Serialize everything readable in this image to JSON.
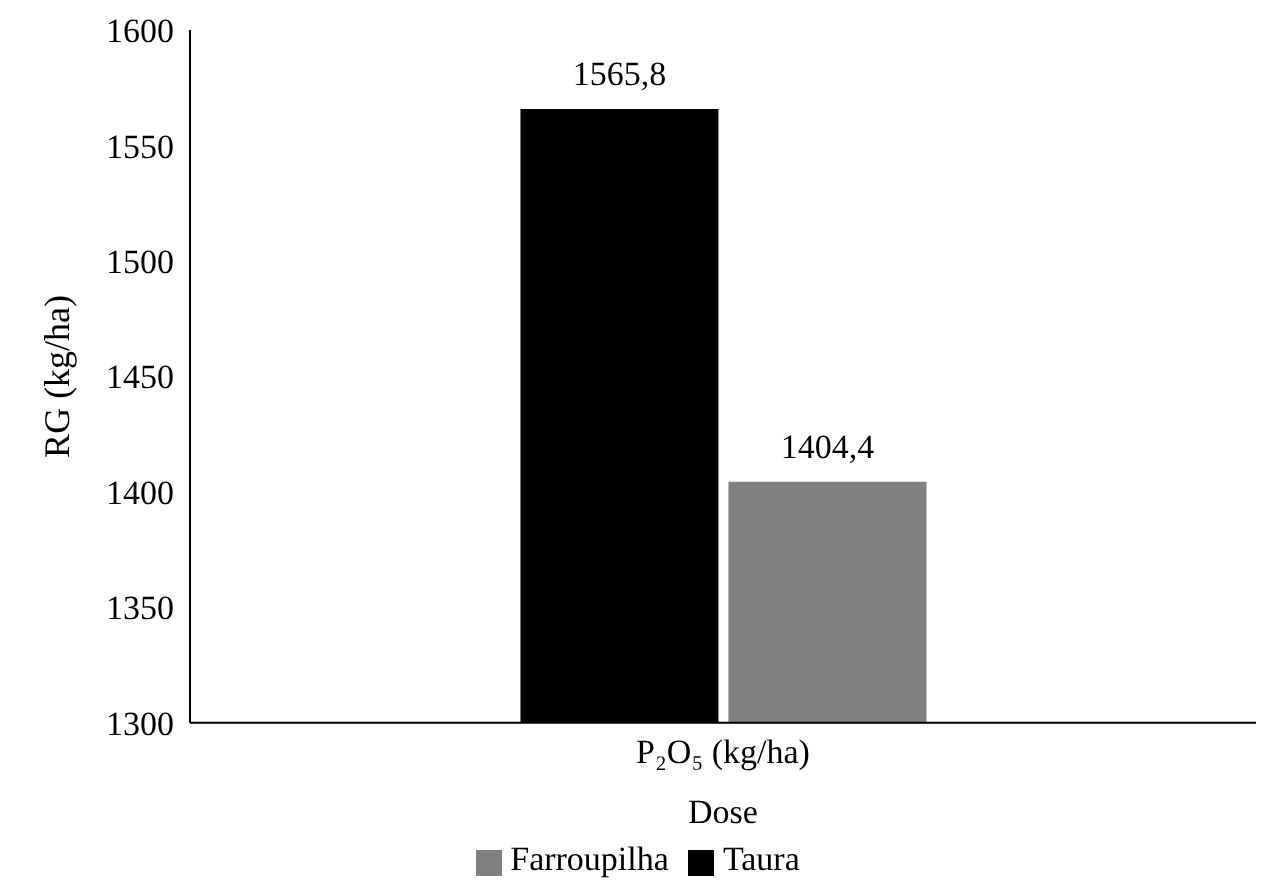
{
  "chart_data": {
    "type": "bar",
    "categories": [
      "P₂O₅ (kg/ha)"
    ],
    "xlabel": "Dose",
    "ylabel": "RG (kg/ha)",
    "series": [
      {
        "name": "Taura",
        "color": "#000000",
        "values": [
          1565.8
        ],
        "value_labels": [
          "1565,8"
        ]
      },
      {
        "name": "Farroupilha",
        "color": "#808080",
        "values": [
          1404.4
        ],
        "value_labels": [
          "1404,4"
        ]
      }
    ],
    "ylim": [
      1300,
      1600
    ],
    "yticks": [
      1300,
      1350,
      1400,
      1450,
      1500,
      1550,
      1600
    ],
    "grid": false,
    "legend": "bottom"
  }
}
